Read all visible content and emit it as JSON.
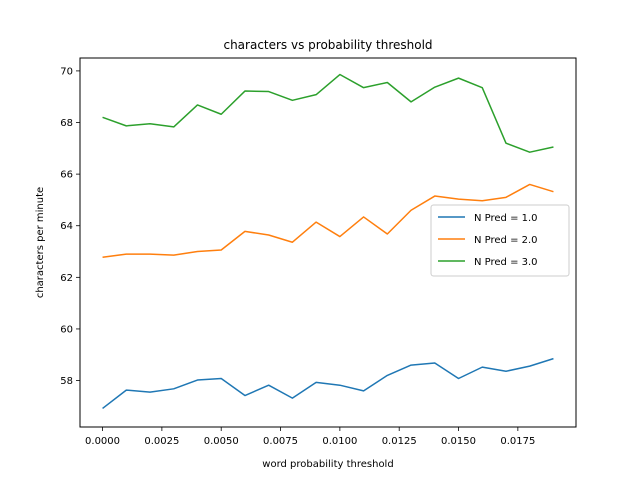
{
  "chart_data": {
    "type": "line",
    "title": "characters vs probability threshold",
    "xlabel": "word probability threshold",
    "ylabel": "characters per minute",
    "xlim": [
      -0.00095,
      0.01995
    ],
    "ylim": [
      56.2,
      70.5
    ],
    "x_ticks": [
      0.0,
      0.0025,
      0.005,
      0.0075,
      0.01,
      0.0125,
      0.015,
      0.0175
    ],
    "x_tick_labels": [
      "0.0000",
      "0.0025",
      "0.0050",
      "0.0075",
      "0.0100",
      "0.0125",
      "0.0150",
      "0.0175"
    ],
    "y_ticks": [
      58,
      60,
      62,
      64,
      66,
      68,
      70
    ],
    "y_tick_labels": [
      "58",
      "60",
      "62",
      "64",
      "66",
      "68",
      "70"
    ],
    "grid": false,
    "legend_position": "center-right",
    "x": [
      0.0,
      0.001,
      0.002,
      0.003,
      0.004,
      0.005,
      0.006,
      0.007,
      0.008,
      0.009,
      0.01,
      0.011,
      0.012,
      0.013,
      0.014,
      0.015,
      0.016,
      0.017,
      0.018,
      0.019
    ],
    "series": [
      {
        "name": "N Pred = 1.0",
        "color": "#1f77b4",
        "values": [
          56.92,
          57.63,
          57.55,
          57.68,
          58.02,
          58.08,
          57.42,
          57.82,
          57.32,
          57.93,
          57.82,
          57.6,
          58.2,
          58.6,
          58.68,
          58.08,
          58.52,
          58.36,
          58.56,
          58.85
        ]
      },
      {
        "name": "N Pred = 2.0",
        "color": "#ff7f0e",
        "values": [
          62.78,
          62.9,
          62.9,
          62.86,
          63.0,
          63.06,
          63.78,
          63.64,
          63.36,
          64.14,
          63.58,
          64.34,
          63.68,
          64.6,
          65.15,
          65.03,
          64.97,
          65.1,
          65.6,
          65.32
        ]
      },
      {
        "name": "N Pred = 3.0",
        "color": "#2ca02c",
        "values": [
          68.2,
          67.87,
          67.95,
          67.83,
          68.68,
          68.32,
          69.22,
          69.2,
          68.86,
          69.08,
          69.86,
          69.35,
          69.55,
          68.8,
          69.37,
          69.72,
          69.35,
          67.2,
          66.85,
          67.05
        ]
      }
    ]
  }
}
